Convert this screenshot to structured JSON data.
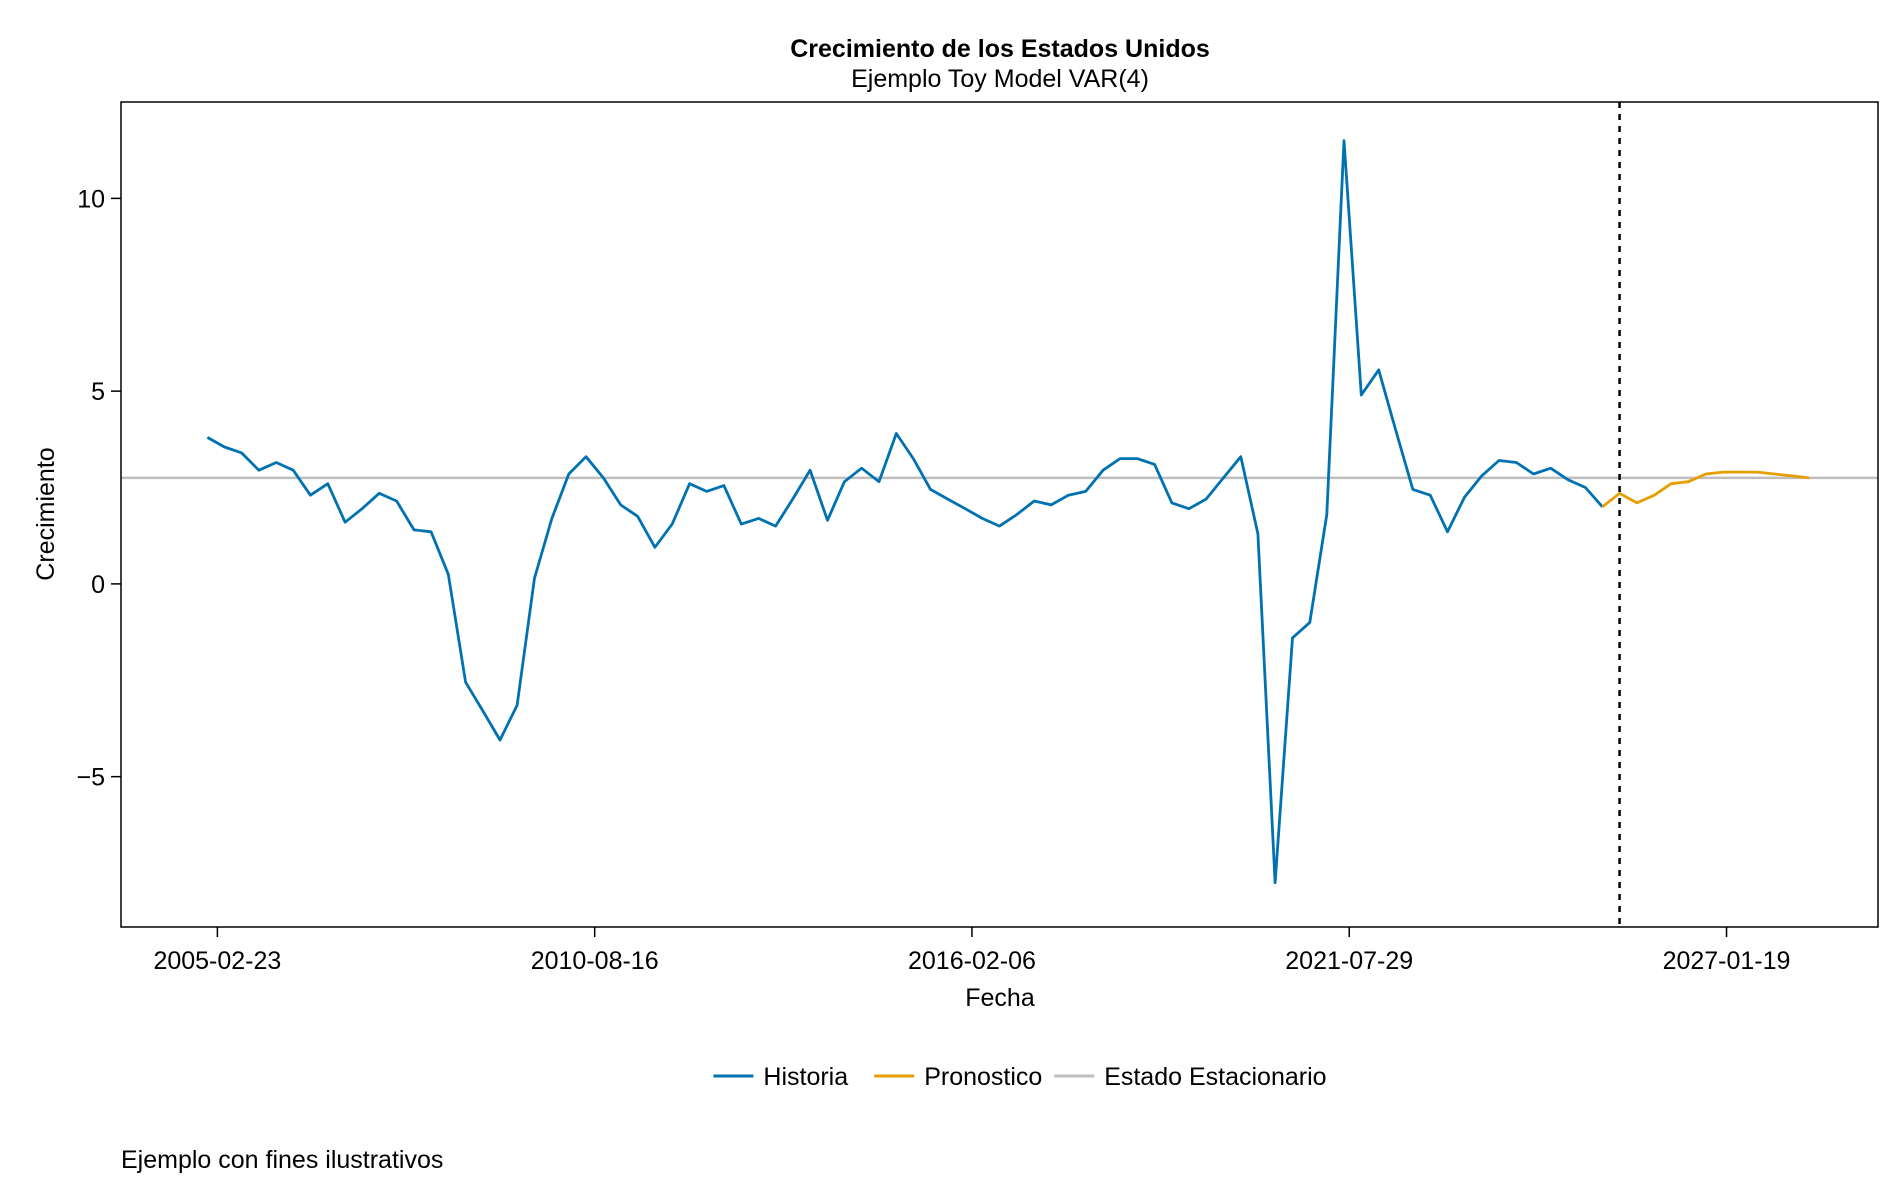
{
  "chart_data": {
    "type": "line",
    "title": "Crecimiento de los Estados Unidos",
    "subtitle": "Ejemplo Toy Model VAR(4)",
    "xlabel": "Fecha",
    "ylabel": "Crecimiento",
    "caption": "Ejemplo con fines ilustrativos",
    "x_ticks": [
      "2005-02-23",
      "2010-08-16",
      "2016-02-06",
      "2021-07-29",
      "2027-01-19"
    ],
    "y_ticks": [
      10,
      5,
      0,
      -5
    ],
    "y_tick_labels": [
      "10",
      "5",
      "0",
      "−5"
    ],
    "xlim": [
      "2003-10-01",
      "2029-04-01"
    ],
    "ylim": [
      -8.9,
      12.5
    ],
    "grid": false,
    "legend_position": "bottom",
    "vline_date": "2025-07-01",
    "colors": {
      "historia": "#0072B2",
      "pronostico": "#E69F00",
      "estacionario": "#BEBEBE",
      "vline": "#000000"
    },
    "series": [
      {
        "name": "Historia",
        "color": "#0072B2",
        "points": [
          {
            "x": "2005-01-01",
            "y": 3.8
          },
          {
            "x": "2005-04-01",
            "y": 3.55
          },
          {
            "x": "2005-07-01",
            "y": 3.4
          },
          {
            "x": "2005-10-01",
            "y": 2.95
          },
          {
            "x": "2006-01-01",
            "y": 3.15
          },
          {
            "x": "2006-04-01",
            "y": 2.95
          },
          {
            "x": "2006-07-01",
            "y": 2.3
          },
          {
            "x": "2006-10-01",
            "y": 2.6
          },
          {
            "x": "2007-01-01",
            "y": 1.6
          },
          {
            "x": "2007-04-01",
            "y": 1.95
          },
          {
            "x": "2007-07-01",
            "y": 2.35
          },
          {
            "x": "2007-10-01",
            "y": 2.15
          },
          {
            "x": "2008-01-01",
            "y": 1.4
          },
          {
            "x": "2008-04-01",
            "y": 1.35
          },
          {
            "x": "2008-07-01",
            "y": 0.25
          },
          {
            "x": "2008-10-01",
            "y": -2.55
          },
          {
            "x": "2009-01-01",
            "y": -3.3
          },
          {
            "x": "2009-04-01",
            "y": -4.05
          },
          {
            "x": "2009-07-01",
            "y": -3.15
          },
          {
            "x": "2009-10-01",
            "y": 0.15
          },
          {
            "x": "2010-01-01",
            "y": 1.7
          },
          {
            "x": "2010-04-01",
            "y": 2.85
          },
          {
            "x": "2010-07-01",
            "y": 3.3
          },
          {
            "x": "2010-10-01",
            "y": 2.75
          },
          {
            "x": "2011-01-01",
            "y": 2.05
          },
          {
            "x": "2011-04-01",
            "y": 1.75
          },
          {
            "x": "2011-07-01",
            "y": 0.95
          },
          {
            "x": "2011-10-01",
            "y": 1.55
          },
          {
            "x": "2012-01-01",
            "y": 2.6
          },
          {
            "x": "2012-04-01",
            "y": 2.4
          },
          {
            "x": "2012-07-01",
            "y": 2.55
          },
          {
            "x": "2012-10-01",
            "y": 1.55
          },
          {
            "x": "2013-01-01",
            "y": 1.7
          },
          {
            "x": "2013-04-01",
            "y": 1.5
          },
          {
            "x": "2013-07-01",
            "y": 2.2
          },
          {
            "x": "2013-10-01",
            "y": 2.95
          },
          {
            "x": "2014-01-01",
            "y": 1.65
          },
          {
            "x": "2014-04-01",
            "y": 2.65
          },
          {
            "x": "2014-07-01",
            "y": 3.0
          },
          {
            "x": "2014-10-01",
            "y": 2.65
          },
          {
            "x": "2015-01-01",
            "y": 3.9
          },
          {
            "x": "2015-04-01",
            "y": 3.25
          },
          {
            "x": "2015-07-01",
            "y": 2.45
          },
          {
            "x": "2015-10-01",
            "y": 2.2
          },
          {
            "x": "2016-01-01",
            "y": 1.95
          },
          {
            "x": "2016-04-01",
            "y": 1.7
          },
          {
            "x": "2016-07-01",
            "y": 1.5
          },
          {
            "x": "2016-10-01",
            "y": 1.8
          },
          {
            "x": "2017-01-01",
            "y": 2.15
          },
          {
            "x": "2017-04-01",
            "y": 2.05
          },
          {
            "x": "2017-07-01",
            "y": 2.3
          },
          {
            "x": "2017-10-01",
            "y": 2.4
          },
          {
            "x": "2018-01-01",
            "y": 2.95
          },
          {
            "x": "2018-04-01",
            "y": 3.25
          },
          {
            "x": "2018-07-01",
            "y": 3.25
          },
          {
            "x": "2018-10-01",
            "y": 3.1
          },
          {
            "x": "2019-01-01",
            "y": 2.1
          },
          {
            "x": "2019-04-01",
            "y": 1.95
          },
          {
            "x": "2019-07-01",
            "y": 2.2
          },
          {
            "x": "2019-10-01",
            "y": 2.75
          },
          {
            "x": "2020-01-01",
            "y": 3.3
          },
          {
            "x": "2020-04-01",
            "y": 1.3
          },
          {
            "x": "2020-07-01",
            "y": -7.75
          },
          {
            "x": "2020-10-01",
            "y": -1.4
          },
          {
            "x": "2021-01-01",
            "y": -1.0
          },
          {
            "x": "2021-04-01",
            "y": 1.8
          },
          {
            "x": "2021-07-01",
            "y": 11.5
          },
          {
            "x": "2021-10-01",
            "y": 4.9
          },
          {
            "x": "2022-01-01",
            "y": 5.55
          },
          {
            "x": "2022-04-01",
            "y": 4.0
          },
          {
            "x": "2022-07-01",
            "y": 2.45
          },
          {
            "x": "2022-10-01",
            "y": 2.3
          },
          {
            "x": "2023-01-01",
            "y": 1.35
          },
          {
            "x": "2023-04-01",
            "y": 2.25
          },
          {
            "x": "2023-07-01",
            "y": 2.8
          },
          {
            "x": "2023-10-01",
            "y": 3.2
          },
          {
            "x": "2024-01-01",
            "y": 3.15
          },
          {
            "x": "2024-04-01",
            "y": 2.85
          },
          {
            "x": "2024-07-01",
            "y": 3.0
          },
          {
            "x": "2024-10-01",
            "y": 2.7
          },
          {
            "x": "2025-01-01",
            "y": 2.5
          },
          {
            "x": "2025-04-01",
            "y": 2.0
          }
        ]
      },
      {
        "name": "Pronostico",
        "color": "#E69F00",
        "points": [
          {
            "x": "2025-04-01",
            "y": 2.0
          },
          {
            "x": "2025-07-01",
            "y": 2.35
          },
          {
            "x": "2025-10-01",
            "y": 2.1
          },
          {
            "x": "2026-01-01",
            "y": 2.3
          },
          {
            "x": "2026-04-01",
            "y": 2.6
          },
          {
            "x": "2026-07-01",
            "y": 2.65
          },
          {
            "x": "2026-10-01",
            "y": 2.85
          },
          {
            "x": "2027-01-01",
            "y": 2.9
          },
          {
            "x": "2027-04-01",
            "y": 2.9
          },
          {
            "x": "2027-07-01",
            "y": 2.9
          },
          {
            "x": "2027-10-01",
            "y": 2.85
          },
          {
            "x": "2028-01-01",
            "y": 2.8
          },
          {
            "x": "2028-04-01",
            "y": 2.75
          }
        ]
      },
      {
        "name": "Estado Estacionario",
        "color": "#BEBEBE",
        "hline": 2.75
      }
    ]
  }
}
